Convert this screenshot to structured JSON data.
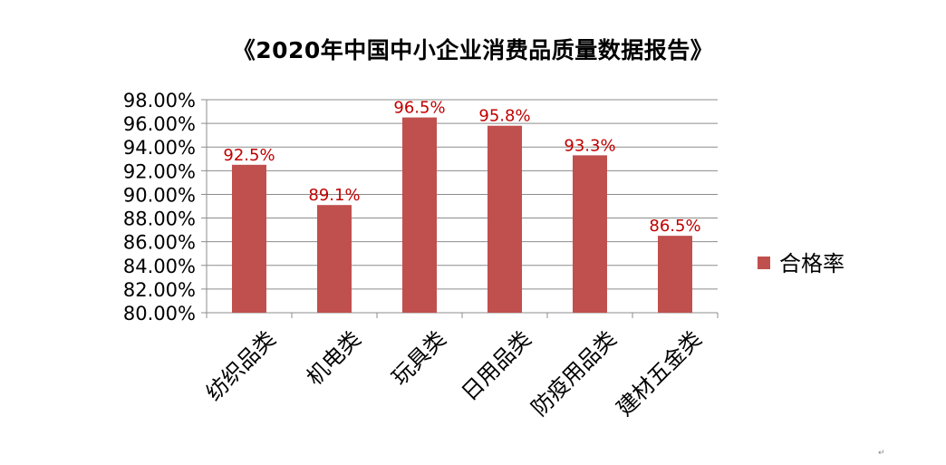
{
  "chart_data": {
    "type": "bar",
    "title": "《2020年中国中小企业消费品质量数据报告》",
    "categories": [
      "纺织品类",
      "机电类",
      "玩具类",
      "日用品类",
      "防疫用品类",
      "建材五金类"
    ],
    "series": [
      {
        "name": "合格率",
        "values": [
          92.5,
          89.1,
          96.5,
          95.8,
          93.3,
          86.5
        ],
        "labels": [
          "92.5%",
          "89.1%",
          "96.5%",
          "95.8%",
          "93.3%",
          "86.5%"
        ],
        "color": "#C0504D"
      }
    ],
    "ylim": [
      80,
      98
    ],
    "yticks": [
      80,
      82,
      84,
      86,
      88,
      90,
      92,
      94,
      96,
      98
    ],
    "ytick_labels": [
      "80.00%",
      "82.00%",
      "84.00%",
      "86.00%",
      "88.00%",
      "90.00%",
      "92.00%",
      "94.00%",
      "96.00%",
      "98.00%"
    ],
    "xlabel": "",
    "ylabel": "",
    "grid": true,
    "legend_position": "right",
    "data_label_color": "#C00000",
    "gridline_color": "#8C8C8C",
    "axis_color": "#8C8C8C",
    "paragraph_mark": "↵"
  }
}
